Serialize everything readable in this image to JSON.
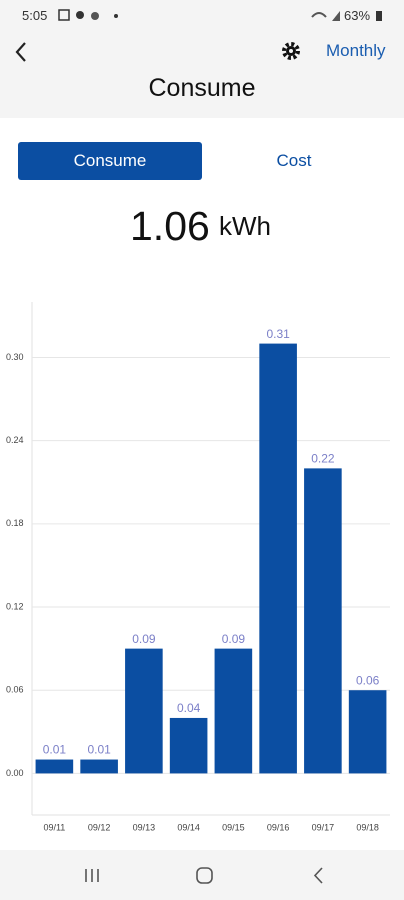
{
  "status_bar": {
    "time": "5:05",
    "battery": "63%"
  },
  "header": {
    "title": "Consume",
    "period": "Monthly"
  },
  "toggle": {
    "active": "Consume",
    "inactive": "Cost"
  },
  "summary": {
    "value": "1.06",
    "unit": "kWh"
  },
  "chart_data": {
    "type": "bar",
    "categories": [
      "09/11",
      "09/12",
      "09/13",
      "09/14",
      "09/15",
      "09/16",
      "09/17",
      "09/18"
    ],
    "values": [
      0.01,
      0.01,
      0.09,
      0.04,
      0.09,
      0.31,
      0.22,
      0.06
    ],
    "color": "#0b4ea2",
    "ylim": [
      -0.03,
      0.34
    ],
    "yticks": [
      {
        "value": 0,
        "label": "0.00"
      },
      {
        "value": 0.06,
        "label": "0.06"
      },
      {
        "value": 0.12,
        "label": "0.12"
      },
      {
        "value": 0.18,
        "label": "0.18"
      },
      {
        "value": 0.24,
        "label": "0.24"
      },
      {
        "value": 0.3,
        "label": "0.30"
      }
    ],
    "grid": true
  }
}
